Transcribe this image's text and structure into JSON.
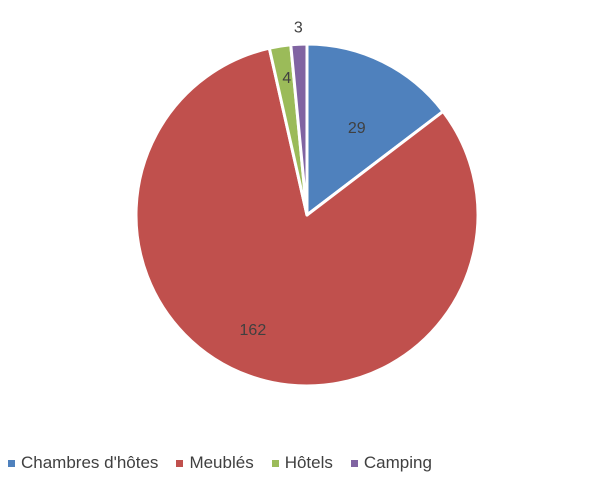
{
  "chart_data": {
    "type": "pie",
    "categories": [
      "Chambres d'hôtes",
      "Meublés",
      "Hôtels",
      "Camping"
    ],
    "values": [
      29,
      162,
      4,
      3
    ],
    "colors": [
      "#4f81bd",
      "#c0504d",
      "#9bbb59",
      "#8064a2"
    ],
    "data_labels": [
      "29",
      "162",
      "4",
      "3"
    ],
    "start_angle_deg": 0,
    "direction": "clockwise",
    "legend_position": "bottom",
    "title": ""
  },
  "legend": {
    "items": [
      {
        "label": "Chambres d'hôtes"
      },
      {
        "label": "Meublés"
      },
      {
        "label": "Hôtels"
      },
      {
        "label": "Camping"
      }
    ]
  }
}
